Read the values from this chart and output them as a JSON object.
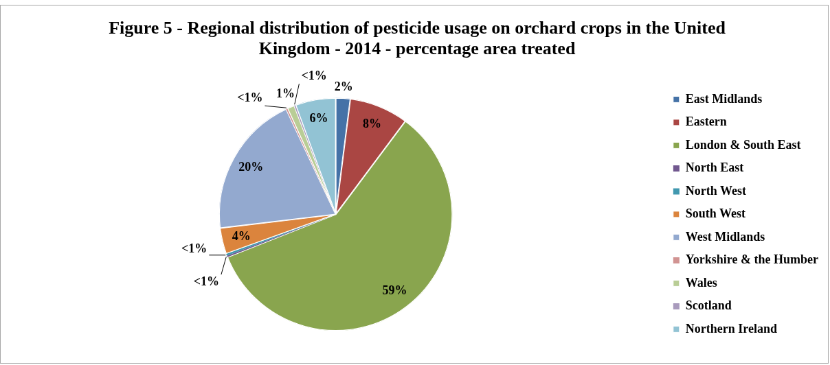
{
  "chart_data": {
    "type": "pie",
    "title": "Figure 5 - Regional distribution of pesticide usage on orchard crops in the United Kingdom - 2014 - percentage area treated",
    "categories": [
      "East Midlands",
      "Eastern",
      "London & South East",
      "North East",
      "North West",
      "South West",
      "West Midlands",
      "Yorkshire & the Humber",
      "Wales",
      "Scotland",
      "Northern Ireland"
    ],
    "values": [
      2.0,
      8.2,
      58.8,
      0.2,
      0.3,
      3.6,
      19.9,
      0.2,
      1.0,
      0.2,
      5.6
    ],
    "colors": [
      "#4572a7",
      "#aa4643",
      "#89a54e",
      "#71588f",
      "#4198af",
      "#db843d",
      "#93a9cf",
      "#d19392",
      "#b9cd96",
      "#a99bbd",
      "#92c3d4"
    ],
    "value_labels": [
      "2%",
      "8%",
      "59%",
      "<1%",
      "<1%",
      "4%",
      "20%",
      "<1%",
      "1%",
      "<1%",
      "6%"
    ],
    "legend": "right"
  }
}
